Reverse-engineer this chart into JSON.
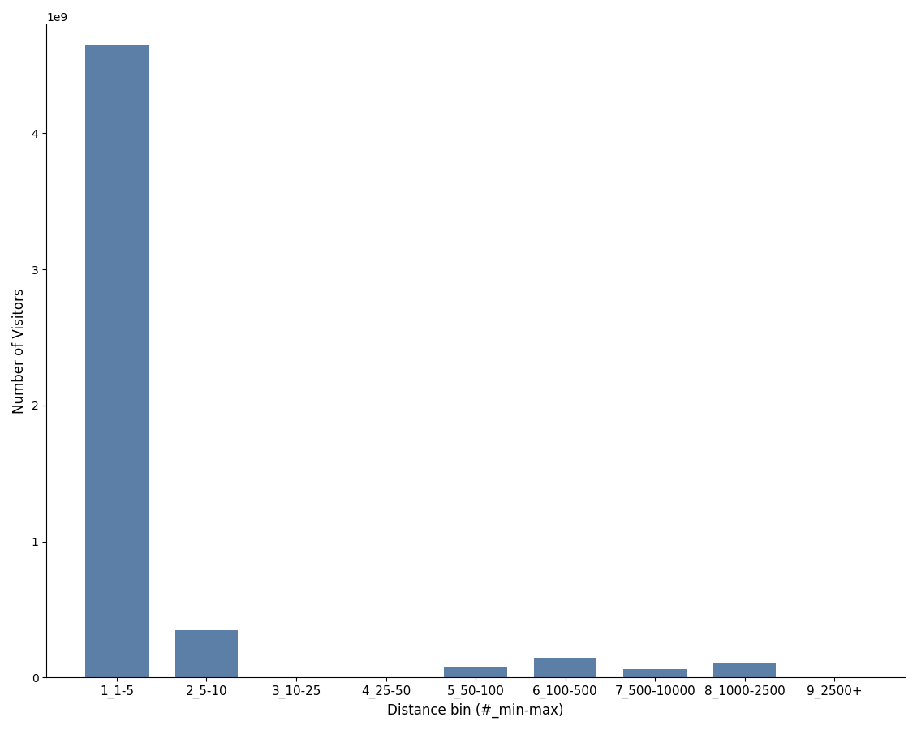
{
  "categories": [
    "1_1-5",
    "2_5-10",
    "3_10-25",
    "4_25-50",
    "5_50-100",
    "6_100-500",
    "7_500-10000",
    "8_1000-2500",
    "9_2500+"
  ],
  "values": [
    4650000000,
    350000000,
    2000000,
    1000000,
    80000000,
    145000000,
    60000000,
    110000000,
    1000000
  ],
  "bar_color": "#5b7fa6",
  "xlabel": "Distance bin (#_min-max)",
  "ylabel": "Number of Visitors",
  "background_color": "#ffffff",
  "ylim": [
    0,
    4800000000.0
  ],
  "figsize": [
    11.3,
    9.0
  ],
  "bar_width": 0.7
}
